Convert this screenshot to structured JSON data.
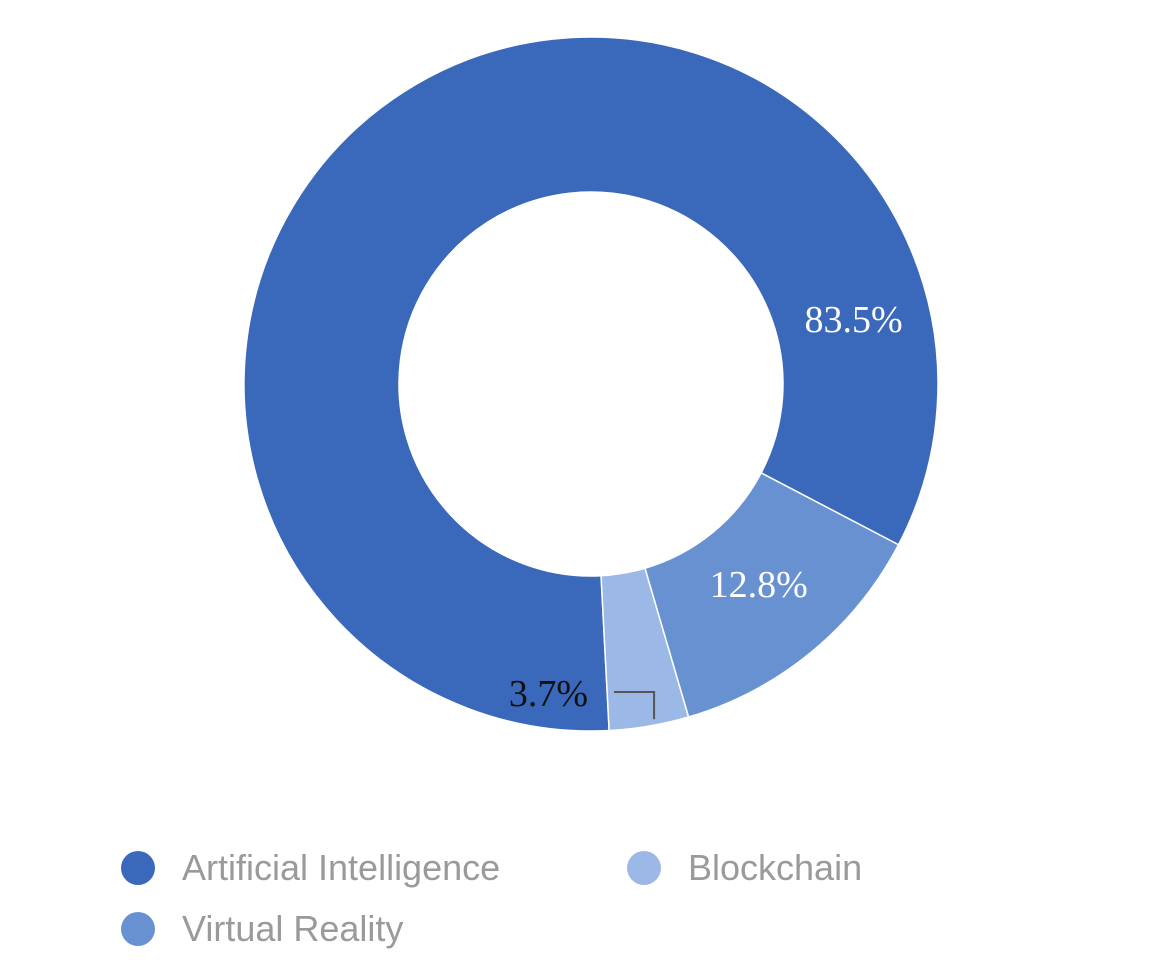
{
  "chart_data": {
    "type": "pie",
    "style": "donut",
    "slices": [
      {
        "label": "Artificial Intelligence",
        "value": 83.5,
        "display": "83.5%",
        "color": "#3a69bb"
      },
      {
        "label": "Virtual Reality",
        "value": 12.8,
        "display": "12.8%",
        "color": "#6891d2"
      },
      {
        "label": "Blockchain",
        "value": 3.7,
        "display": "3.7%",
        "color": "#9bb8e6"
      }
    ],
    "legend": {
      "placement": "bottom",
      "entries": [
        {
          "label": "Artificial Intelligence",
          "color": "#3a69bb"
        },
        {
          "label": "Blockchain",
          "color": "#9bb8e6"
        },
        {
          "label": "Virtual Reality",
          "color": "#6891d2"
        }
      ]
    },
    "colors": {
      "inside_label": "#ffffff",
      "outside_label": "#111111",
      "leader_line": "#555555",
      "legend_text": "#9a9a9a"
    }
  }
}
